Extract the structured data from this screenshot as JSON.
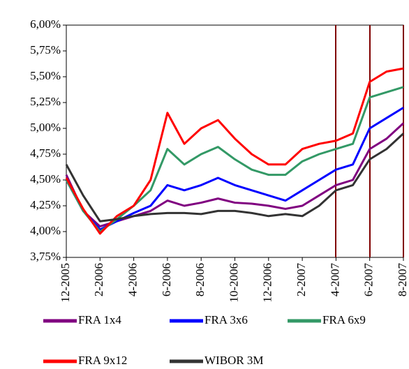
{
  "chart_data": {
    "type": "line",
    "categories": [
      "12-2005",
      null,
      "2-2006",
      null,
      "4-2006",
      null,
      "6-2006",
      null,
      "8-2006",
      null,
      "10-2006",
      null,
      "12-2006",
      null,
      "2-2007",
      null,
      "4-2007",
      null,
      "6-2007",
      null,
      "8-2007"
    ],
    "series": [
      {
        "name": "FRA 1x4",
        "color": "#800080",
        "values": [
          4.55,
          4.2,
          4.05,
          4.1,
          4.15,
          4.2,
          4.3,
          4.25,
          4.28,
          4.32,
          4.28,
          4.27,
          4.25,
          4.22,
          4.25,
          4.35,
          4.45,
          4.5,
          4.8,
          4.9,
          5.05
        ]
      },
      {
        "name": "FRA 3x6",
        "color": "#0000ff",
        "values": [
          4.5,
          4.2,
          4.02,
          4.1,
          4.18,
          4.25,
          4.45,
          4.4,
          4.45,
          4.52,
          4.45,
          4.4,
          4.35,
          4.3,
          4.4,
          4.5,
          4.6,
          4.65,
          5.0,
          5.1,
          5.2
        ]
      },
      {
        "name": "FRA 6x9",
        "color": "#339966",
        "values": [
          4.5,
          4.2,
          4.0,
          4.12,
          4.25,
          4.4,
          4.8,
          4.65,
          4.75,
          4.82,
          4.7,
          4.6,
          4.55,
          4.55,
          4.68,
          4.75,
          4.8,
          4.85,
          5.3,
          5.35,
          5.4
        ]
      },
      {
        "name": "FRA 9x12",
        "color": "#ff0000",
        "values": [
          4.52,
          4.22,
          3.98,
          4.15,
          4.25,
          4.5,
          5.15,
          4.85,
          5.0,
          5.08,
          4.9,
          4.75,
          4.65,
          4.65,
          4.8,
          4.85,
          4.88,
          4.95,
          5.45,
          5.55,
          5.58
        ]
      },
      {
        "name": "WIBOR 3M",
        "color": "#333333",
        "values": [
          4.65,
          4.35,
          4.1,
          4.12,
          4.15,
          4.17,
          4.18,
          4.18,
          4.17,
          4.2,
          4.2,
          4.18,
          4.15,
          4.17,
          4.15,
          4.25,
          4.4,
          4.45,
          4.7,
          4.8,
          4.95
        ]
      }
    ],
    "ylim": [
      3.75,
      6.0
    ],
    "yticks": [
      {
        "value": 3.75,
        "label": "3,75%"
      },
      {
        "value": 4.0,
        "label": "4,00%"
      },
      {
        "value": 4.25,
        "label": "4,25%"
      },
      {
        "value": 4.5,
        "label": "4,50%"
      },
      {
        "value": 4.75,
        "label": "4,75%"
      },
      {
        "value": 5.0,
        "label": "5,00%"
      },
      {
        "value": 5.25,
        "label": "5,25%"
      },
      {
        "value": 5.5,
        "label": "5,50%"
      },
      {
        "value": 5.75,
        "label": "5,75%"
      },
      {
        "value": 6.0,
        "label": "6,00%"
      }
    ],
    "grid": false
  }
}
